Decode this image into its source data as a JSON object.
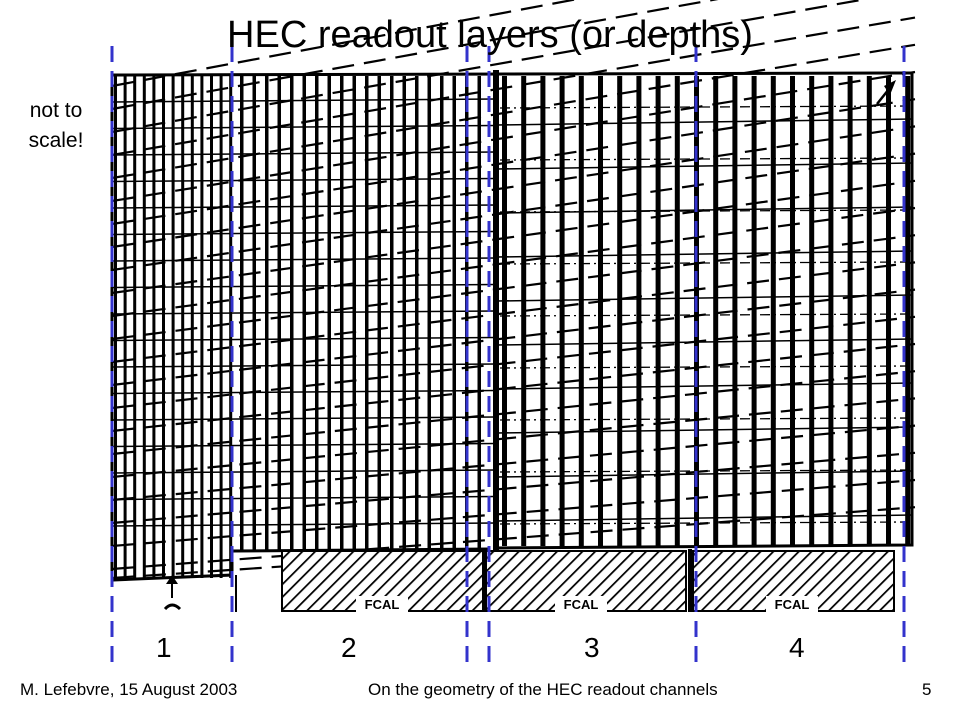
{
  "slide": {
    "title": "HEC readout layers (or depths)",
    "note": "not to scale!",
    "fcal_label": "FCAL",
    "depths": [
      "1",
      "2",
      "3",
      "4"
    ],
    "footer": {
      "author": "M. Lefebvre, 15 August 2003",
      "subject": "On the geometry of the HEC readout channels",
      "page": "5"
    }
  },
  "colors": {
    "divider": "#3333cc",
    "structure": "#000000"
  }
}
